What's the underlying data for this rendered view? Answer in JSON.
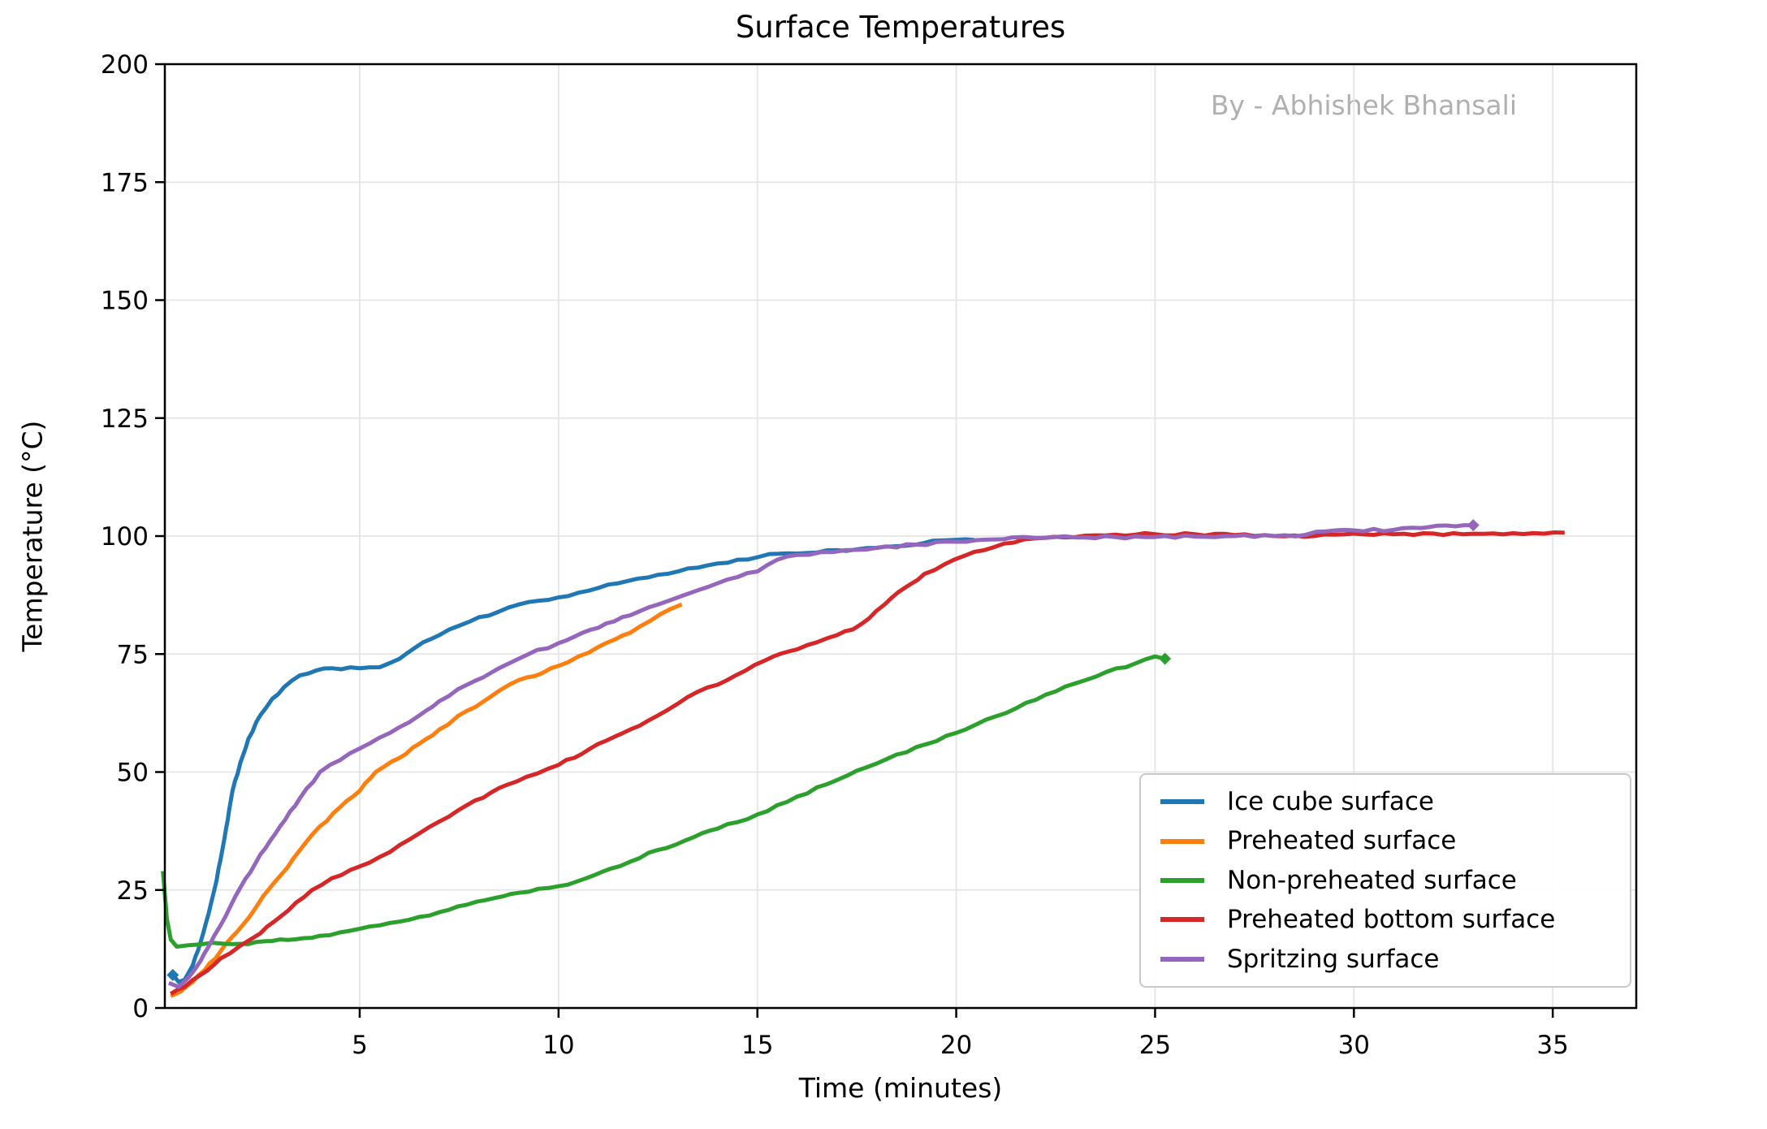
{
  "page": {
    "background": "#ffffff"
  },
  "chart_data": {
    "type": "line",
    "title": "Surface Temperatures",
    "watermark": "By - Abhishek Bhansali",
    "xlabel": "Time (minutes)",
    "ylabel": "Temperature (°C)",
    "xlim": [
      0.1,
      37.1
    ],
    "ylim": [
      0,
      200
    ],
    "xticks": [
      5,
      10,
      15,
      20,
      25,
      30,
      35
    ],
    "yticks": [
      0,
      25,
      50,
      75,
      100,
      125,
      150,
      175,
      200
    ],
    "grid": true,
    "grid_color": "#e5e5e5",
    "axis_color": "#000000",
    "legend_position": "lower right",
    "series": [
      {
        "name": "Ice cube surface",
        "color": "#1f77b4",
        "marker": "diamond",
        "marker_at": "start",
        "points": [
          [
            0.3,
            7
          ],
          [
            0.45,
            5.5
          ],
          [
            0.6,
            6
          ],
          [
            0.8,
            9
          ],
          [
            1.0,
            14
          ],
          [
            1.2,
            20
          ],
          [
            1.4,
            27
          ],
          [
            1.6,
            36
          ],
          [
            1.8,
            46
          ],
          [
            2.0,
            52
          ],
          [
            2.2,
            57
          ],
          [
            2.5,
            62
          ],
          [
            2.8,
            65.5
          ],
          [
            3.1,
            68
          ],
          [
            3.5,
            70.5
          ],
          [
            3.9,
            71.5
          ],
          [
            4.3,
            72
          ],
          [
            5.0,
            72
          ],
          [
            5.5,
            72.2
          ],
          [
            6.0,
            74
          ],
          [
            6.6,
            77.5
          ],
          [
            7.0,
            79
          ],
          [
            7.5,
            81
          ],
          [
            8.0,
            82.8
          ],
          [
            8.5,
            84
          ],
          [
            9.0,
            85.5
          ],
          [
            9.5,
            86.3
          ],
          [
            10.0,
            87
          ],
          [
            10.5,
            88
          ],
          [
            11.0,
            89
          ],
          [
            11.5,
            90
          ],
          [
            12.0,
            91
          ],
          [
            12.5,
            91.8
          ],
          [
            13.0,
            92.5
          ],
          [
            13.5,
            93.3
          ],
          [
            14.0,
            94.2
          ],
          [
            14.5,
            95
          ],
          [
            15.0,
            95.5
          ],
          [
            15.3,
            96.2
          ],
          [
            16.0,
            96.3
          ],
          [
            16.5,
            96.5
          ],
          [
            17.0,
            97
          ],
          [
            17.5,
            97.2
          ],
          [
            18.0,
            97.5
          ],
          [
            18.4,
            97.8
          ],
          [
            19.0,
            98.2
          ],
          [
            19.4,
            99
          ],
          [
            20.0,
            99.2
          ],
          [
            20.45,
            99.2
          ]
        ]
      },
      {
        "name": "Preheated surface",
        "color": "#ff7f0e",
        "marker": null,
        "marker_at": null,
        "points": [
          [
            0.25,
            2.5
          ],
          [
            0.5,
            3.5
          ],
          [
            0.8,
            5.5
          ],
          [
            1.1,
            8
          ],
          [
            1.5,
            12
          ],
          [
            1.9,
            16
          ],
          [
            2.2,
            19
          ],
          [
            2.7,
            25
          ],
          [
            3.0,
            28
          ],
          [
            3.5,
            33.5
          ],
          [
            4.0,
            38.5
          ],
          [
            4.5,
            42.5
          ],
          [
            5.0,
            46
          ],
          [
            5.4,
            50
          ],
          [
            6.0,
            53
          ],
          [
            6.5,
            56
          ],
          [
            7.0,
            59
          ],
          [
            7.7,
            63
          ],
          [
            8.3,
            66
          ],
          [
            9.0,
            69.5
          ],
          [
            9.6,
            71
          ],
          [
            10.0,
            72.5
          ],
          [
            10.5,
            74.5
          ],
          [
            11.0,
            76.5
          ],
          [
            11.8,
            79.5
          ],
          [
            12.3,
            82
          ],
          [
            12.8,
            84.5
          ],
          [
            13.1,
            85.5
          ]
        ]
      },
      {
        "name": "Non-preheated surface",
        "color": "#2ca02c",
        "marker": "diamond",
        "marker_at": "end",
        "points": [
          [
            0.05,
            29
          ],
          [
            0.1,
            24
          ],
          [
            0.15,
            19
          ],
          [
            0.25,
            14.5
          ],
          [
            0.4,
            13
          ],
          [
            0.7,
            13.3
          ],
          [
            1.0,
            13.5
          ],
          [
            1.3,
            13.8
          ],
          [
            1.6,
            13.6
          ],
          [
            2.0,
            13.6
          ],
          [
            2.4,
            14
          ],
          [
            2.8,
            14.2
          ],
          [
            3.2,
            14.4
          ],
          [
            3.6,
            14.8
          ],
          [
            4.0,
            15.3
          ],
          [
            4.5,
            16
          ],
          [
            5.0,
            16.8
          ],
          [
            5.5,
            17.5
          ],
          [
            6.0,
            18.3
          ],
          [
            6.5,
            19.3
          ],
          [
            7.0,
            20.3
          ],
          [
            7.7,
            21.9
          ],
          [
            8.4,
            23.3
          ],
          [
            9.0,
            24.4
          ],
          [
            10.0,
            25.8
          ],
          [
            10.7,
            27.5
          ],
          [
            11.3,
            29.5
          ],
          [
            11.8,
            31
          ],
          [
            12.5,
            33.5
          ],
          [
            13.4,
            36.2
          ],
          [
            14.0,
            38
          ],
          [
            15.0,
            41
          ],
          [
            16.0,
            44.8
          ],
          [
            17.0,
            48.3
          ],
          [
            18.0,
            51.8
          ],
          [
            19.0,
            55.3
          ],
          [
            20.0,
            58.3
          ],
          [
            21.0,
            61.8
          ],
          [
            22.0,
            65.3
          ],
          [
            23.0,
            68.8
          ],
          [
            23.8,
            71.3
          ],
          [
            24.5,
            73
          ],
          [
            25.0,
            74.5
          ],
          [
            25.25,
            74
          ]
        ]
      },
      {
        "name": "Preheated bottom surface",
        "color": "#d62728",
        "marker": null,
        "marker_at": null,
        "points": [
          [
            0.25,
            3
          ],
          [
            0.6,
            4.5
          ],
          [
            1.0,
            7
          ],
          [
            1.5,
            10.5
          ],
          [
            2.0,
            13.2
          ],
          [
            2.5,
            15.8
          ],
          [
            3.0,
            19.3
          ],
          [
            3.8,
            25
          ],
          [
            4.3,
            27.5
          ],
          [
            5.0,
            30
          ],
          [
            5.5,
            32
          ],
          [
            6.0,
            34.5
          ],
          [
            6.5,
            37
          ],
          [
            7.0,
            39.5
          ],
          [
            7.7,
            43
          ],
          [
            8.5,
            46.6
          ],
          [
            9.2,
            49
          ],
          [
            10.0,
            51.5
          ],
          [
            10.8,
            55
          ],
          [
            11.8,
            59
          ],
          [
            12.5,
            62
          ],
          [
            13.0,
            64.5
          ],
          [
            13.5,
            67
          ],
          [
            14.0,
            68.5
          ],
          [
            14.7,
            71.5
          ],
          [
            15.4,
            74.5
          ],
          [
            16.0,
            76
          ],
          [
            16.5,
            77.5
          ],
          [
            17.0,
            79
          ],
          [
            17.4,
            80.2
          ],
          [
            17.8,
            82.5
          ],
          [
            18.2,
            85.5
          ],
          [
            18.7,
            89
          ],
          [
            19.2,
            92
          ],
          [
            19.7,
            94
          ],
          [
            20.2,
            95.8
          ],
          [
            20.7,
            97
          ],
          [
            21.2,
            98.4
          ],
          [
            21.7,
            99.3
          ],
          [
            22.2,
            99.6
          ],
          [
            23.0,
            99.8
          ],
          [
            24.0,
            100.3
          ],
          [
            25.0,
            100.4
          ],
          [
            26.0,
            100.4
          ],
          [
            27.0,
            100.2
          ],
          [
            28.0,
            100.0
          ],
          [
            29.0,
            100.0
          ],
          [
            29.5,
            100.3
          ],
          [
            31.0,
            100.4
          ],
          [
            33.0,
            100.5
          ],
          [
            34.0,
            100.6
          ],
          [
            35.3,
            100.7
          ]
        ]
      },
      {
        "name": "Spritzing surface",
        "color": "#9467bd",
        "marker": "diamond",
        "marker_at": "end",
        "points": [
          [
            0.2,
            5.3
          ],
          [
            0.45,
            4.5
          ],
          [
            0.7,
            6.5
          ],
          [
            1.0,
            10
          ],
          [
            1.2,
            13
          ],
          [
            1.5,
            17.5
          ],
          [
            2.0,
            25.5
          ],
          [
            2.5,
            32.5
          ],
          [
            3.0,
            38.5
          ],
          [
            3.5,
            44.5
          ],
          [
            4.0,
            50
          ],
          [
            4.5,
            52.5
          ],
          [
            5.0,
            55
          ],
          [
            5.5,
            57.3
          ],
          [
            6.0,
            59.5
          ],
          [
            6.5,
            62
          ],
          [
            7.0,
            65
          ],
          [
            7.7,
            68.5
          ],
          [
            8.5,
            72
          ],
          [
            9.2,
            74.8
          ],
          [
            10.0,
            77.3
          ],
          [
            10.6,
            79.5
          ],
          [
            11.2,
            81.5
          ],
          [
            11.8,
            83.2
          ],
          [
            12.5,
            85.5
          ],
          [
            13.0,
            87
          ],
          [
            13.5,
            88.5
          ],
          [
            14.0,
            90
          ],
          [
            14.5,
            91.3
          ],
          [
            15.0,
            92.5
          ],
          [
            15.5,
            95
          ],
          [
            16.0,
            96
          ],
          [
            16.6,
            96.6
          ],
          [
            17.2,
            97
          ],
          [
            18.0,
            97.5
          ],
          [
            19.0,
            98.2
          ],
          [
            20.0,
            98.8
          ],
          [
            21.0,
            99.3
          ],
          [
            21.4,
            99.7
          ],
          [
            22.0,
            99.6
          ],
          [
            23.0,
            99.7
          ],
          [
            24.0,
            99.8
          ],
          [
            25.0,
            99.8
          ],
          [
            26.0,
            99.9
          ],
          [
            27.0,
            100
          ],
          [
            28.0,
            100
          ],
          [
            28.8,
            100.3
          ],
          [
            29.3,
            101
          ],
          [
            30.0,
            101.2
          ],
          [
            31.0,
            101.3
          ],
          [
            31.7,
            101.7
          ],
          [
            32.1,
            102.2
          ],
          [
            33.0,
            102.3
          ]
        ]
      }
    ]
  }
}
